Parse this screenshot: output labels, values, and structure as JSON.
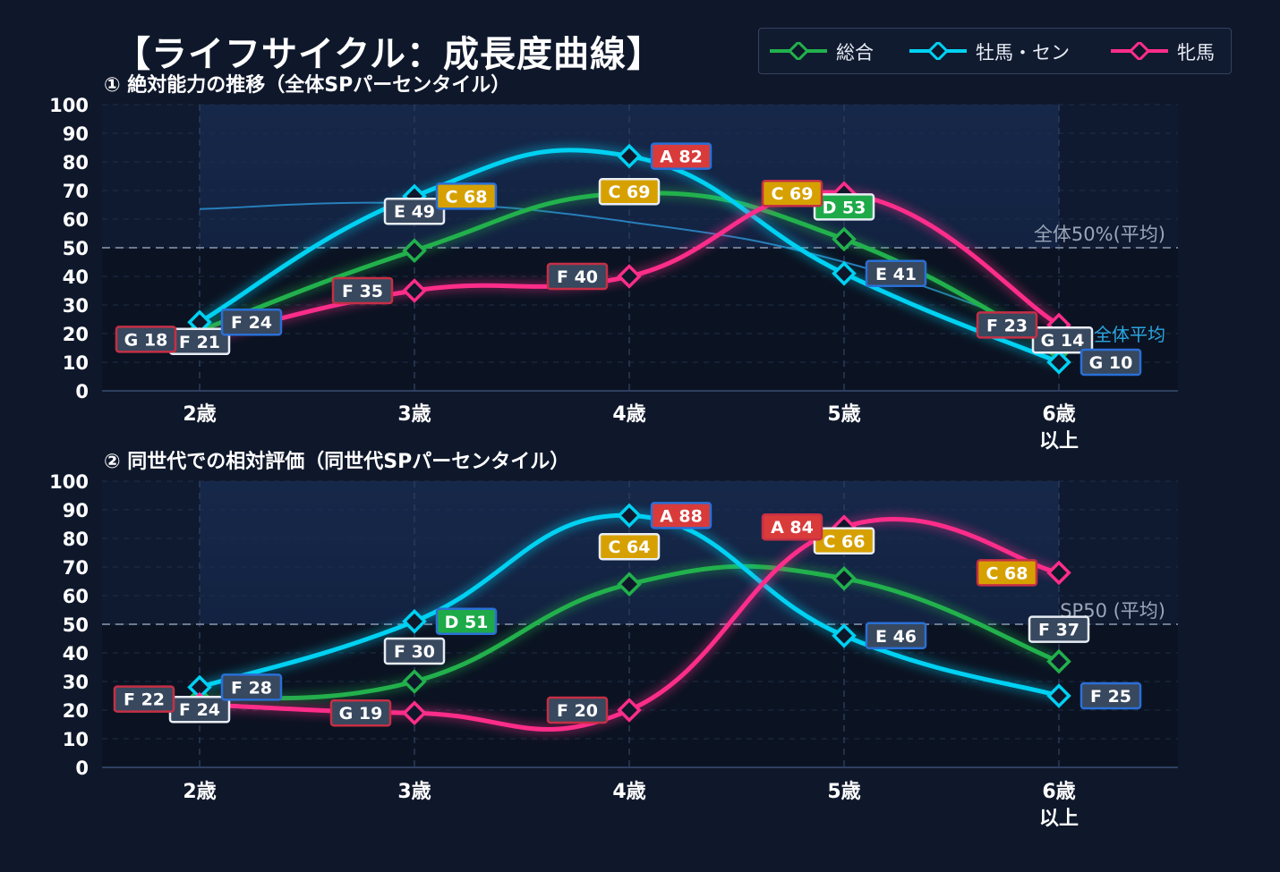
{
  "title": "【ライフサイクル：成長度曲線】",
  "legend": [
    {
      "name": "総合",
      "color": "#22b14c"
    },
    {
      "name": "牡馬・セン",
      "color": "#00d1f2"
    },
    {
      "name": "牝馬",
      "color": "#ff2d8a"
    }
  ],
  "colors": {
    "background": "#0f182b",
    "plot_bg": "#0b1322",
    "grade_A": "#d93b3b",
    "grade_C": "#d6a100",
    "grade_D": "#1faa4a",
    "grade_E": "#38485e",
    "grade_F": "#38485e",
    "grade_G": "#38485e"
  },
  "chart_data": [
    {
      "type": "line",
      "title": "① 絶対能力の推移（全体SPパーセンタイル）",
      "categories": [
        "2歳",
        "3歳",
        "4歳",
        "5歳",
        "6歳\n以上"
      ],
      "ylim": [
        0,
        100
      ],
      "yticks": [
        0,
        10,
        20,
        30,
        40,
        50,
        60,
        70,
        80,
        90,
        100
      ],
      "grid": true,
      "reference_lines": [
        {
          "value": 50,
          "label": "全体50%(平均)",
          "color": "#9aa5b8"
        }
      ],
      "average_curve": {
        "label": "全体平均",
        "label_color": "#2ba6e0",
        "values": [
          63.5,
          65.5,
          59,
          45,
          19
        ]
      },
      "series": [
        {
          "name": "総合",
          "values": [
            21,
            49,
            69,
            53,
            14
          ],
          "labels": [
            "F 21",
            "E 49",
            "C 69",
            "D 53",
            "G 14"
          ]
        },
        {
          "name": "牡馬・セン",
          "values": [
            24,
            68,
            82,
            41,
            10
          ],
          "labels": [
            "F 24",
            "C 68",
            "A 82",
            "E 41",
            "G 10"
          ]
        },
        {
          "name": "牝馬",
          "values": [
            18,
            35,
            40,
            69,
            23
          ],
          "labels": [
            "G 18",
            "F 35",
            "F 40",
            "C 69",
            "F 23"
          ]
        }
      ]
    },
    {
      "type": "line",
      "title": "② 同世代での相対評価（同世代SPパーセンタイル）",
      "categories": [
        "2歳",
        "3歳",
        "4歳",
        "5歳",
        "6歳\n以上"
      ],
      "ylim": [
        0,
        100
      ],
      "yticks": [
        0,
        10,
        20,
        30,
        40,
        50,
        60,
        70,
        80,
        90,
        100
      ],
      "grid": true,
      "reference_lines": [
        {
          "value": 50,
          "label": "SP50 (平均)",
          "color": "#9aa5b8"
        }
      ],
      "series": [
        {
          "name": "総合",
          "values": [
            24,
            30,
            64,
            66,
            37
          ],
          "labels": [
            "F 24",
            "F 30",
            "C 64",
            "C 66",
            "F 37"
          ]
        },
        {
          "name": "牡馬・セン",
          "values": [
            28,
            51,
            88,
            46,
            25
          ],
          "labels": [
            "F 28",
            "D 51",
            "A 88",
            "E 46",
            "F 25"
          ]
        },
        {
          "name": "牝馬",
          "values": [
            22,
            19,
            20,
            84,
            68
          ],
          "labels": [
            "F 22",
            "G 19",
            "F 20",
            "A 84",
            "C 68"
          ]
        }
      ]
    }
  ]
}
